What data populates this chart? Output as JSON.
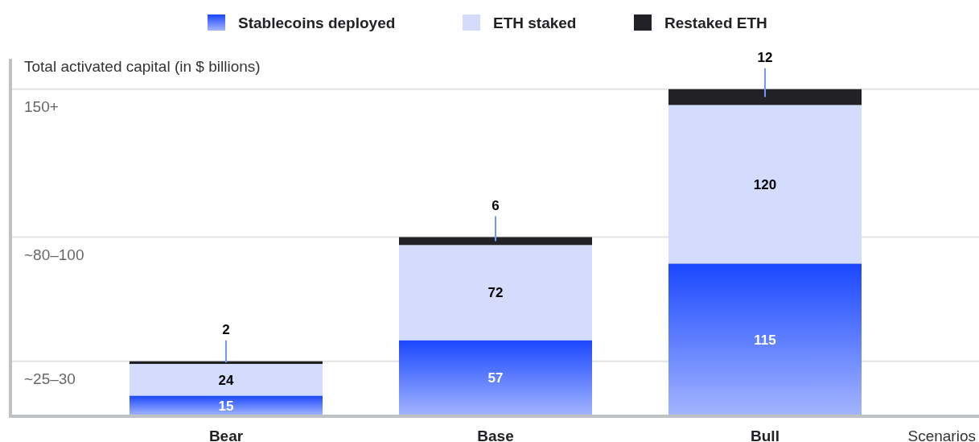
{
  "chart_data": {
    "type": "bar",
    "stacked": true,
    "title": null,
    "ylabel": "Total activated capital (in $ billions)",
    "xlabel": "Scenarios",
    "categories": [
      "Bear",
      "Base",
      "Bull"
    ],
    "series": [
      {
        "name": "Stablecoins deployed",
        "color": "#1a47ff",
        "values": [
          15,
          57,
          115
        ]
      },
      {
        "name": "ETH staked",
        "color": "#d3dcfc",
        "values": [
          24,
          72,
          120
        ]
      },
      {
        "name": "Restaked ETH",
        "color": "#222226",
        "values": [
          2,
          6,
          12
        ]
      }
    ],
    "ylim": [
      0,
      270
    ],
    "ref_lines": [
      {
        "axis": "y",
        "value": 41,
        "color": "#e2e2e2"
      },
      {
        "axis": "y",
        "value": 135,
        "color": "#e2e2e2"
      },
      {
        "axis": "y",
        "value": 247,
        "color": "#e2e2e2"
      }
    ],
    "annotations": [
      {
        "text": "~25–30",
        "y": 41
      },
      {
        "text": "~80–100",
        "y": 135
      },
      {
        "text": "150+",
        "y": 247
      }
    ],
    "legend": "top",
    "data_labels": true
  }
}
